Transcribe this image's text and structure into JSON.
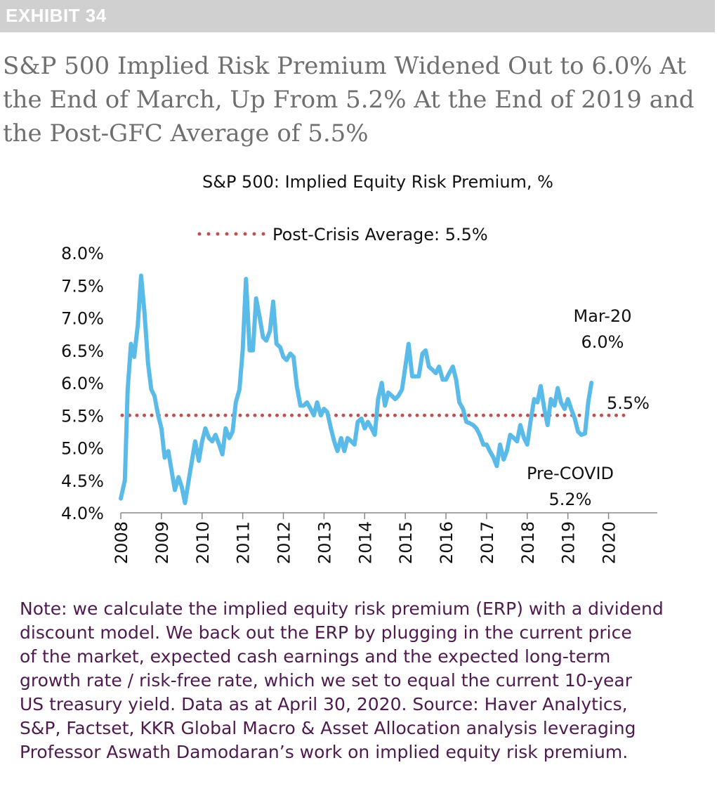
{
  "exhibit_label": "EXHIBIT 34",
  "headline": "S&P 500 Implied Risk Premium Widened Out to 6.0% At the End of March, Up From 5.2% At the End of 2019 and the Post-GFC Average of 5.5%",
  "note_lines": [
    "Note: we calculate the implied equity risk premium (ERP) with a dividend",
    "discount model. We back out the ERP by plugging in the current price",
    "of the market, expected cash earnings and the expected long-term",
    "growth rate / risk-free rate, which we set to equal the current 10-year",
    "US treasury yield. Data as at April 30, 2020. Source: Haver Analytics,",
    "S&P, Factset, KKR Global Macro & Asset Allocation analysis leveraging",
    "Professor Aswath Damodaran’s work on implied equity risk premium."
  ],
  "colors": {
    "series": "#5bbbe8",
    "average": "#c0504d",
    "note": "#4f1b4f",
    "headline": "#6f6f6f",
    "exhibit_bar": "#d0d0d0"
  },
  "chart_data": {
    "type": "line",
    "title": "S&P 500: Implied Equity Risk Premium, %",
    "legend": {
      "label": "Post-Crisis Average: 5.5%",
      "placement": "top"
    },
    "ylim": [
      4.0,
      8.0
    ],
    "yticks": [
      "4.0%",
      "4.5%",
      "5.0%",
      "5.5%",
      "6.0%",
      "6.5%",
      "7.0%",
      "7.5%",
      "8.0%"
    ],
    "xlim": [
      2008,
      2021.2
    ],
    "xticks": [
      "2008",
      "2009",
      "2010",
      "2011",
      "2012",
      "2013",
      "2014",
      "2015",
      "2016",
      "2017",
      "2018",
      "2019",
      "2020"
    ],
    "grid": false,
    "series": [
      {
        "values": [
          [
            2008.0,
            4.22
          ],
          [
            2008.1,
            4.5
          ],
          [
            2008.17,
            5.9
          ],
          [
            2008.25,
            6.6
          ],
          [
            2008.33,
            6.4
          ],
          [
            2008.42,
            6.9
          ],
          [
            2008.5,
            7.65
          ],
          [
            2008.58,
            7.1
          ],
          [
            2008.67,
            6.3
          ],
          [
            2008.75,
            5.9
          ],
          [
            2008.83,
            5.8
          ],
          [
            2008.92,
            5.5
          ],
          [
            2009.0,
            5.3
          ],
          [
            2009.08,
            4.85
          ],
          [
            2009.17,
            4.95
          ],
          [
            2009.25,
            4.65
          ],
          [
            2009.33,
            4.35
          ],
          [
            2009.42,
            4.55
          ],
          [
            2009.5,
            4.4
          ],
          [
            2009.58,
            4.15
          ],
          [
            2009.67,
            4.5
          ],
          [
            2009.75,
            4.8
          ],
          [
            2009.83,
            5.1
          ],
          [
            2009.92,
            4.8
          ],
          [
            2010.0,
            5.1
          ],
          [
            2010.08,
            5.3
          ],
          [
            2010.17,
            5.15
          ],
          [
            2010.25,
            5.1
          ],
          [
            2010.33,
            5.2
          ],
          [
            2010.42,
            5.05
          ],
          [
            2010.5,
            4.9
          ],
          [
            2010.58,
            5.3
          ],
          [
            2010.67,
            5.15
          ],
          [
            2010.75,
            5.25
          ],
          [
            2010.83,
            5.7
          ],
          [
            2010.92,
            5.9
          ],
          [
            2011.0,
            6.5
          ],
          [
            2011.08,
            7.6
          ],
          [
            2011.17,
            6.5
          ],
          [
            2011.25,
            6.5
          ],
          [
            2011.33,
            7.3
          ],
          [
            2011.42,
            7.0
          ],
          [
            2011.5,
            6.7
          ],
          [
            2011.58,
            6.65
          ],
          [
            2011.67,
            6.8
          ],
          [
            2011.75,
            7.25
          ],
          [
            2011.83,
            6.6
          ],
          [
            2011.92,
            6.55
          ],
          [
            2012.0,
            6.4
          ],
          [
            2012.08,
            6.35
          ],
          [
            2012.17,
            6.45
          ],
          [
            2012.25,
            6.4
          ],
          [
            2012.33,
            5.95
          ],
          [
            2012.42,
            5.65
          ],
          [
            2012.5,
            5.65
          ],
          [
            2012.58,
            5.7
          ],
          [
            2012.67,
            5.6
          ],
          [
            2012.75,
            5.5
          ],
          [
            2012.83,
            5.7
          ],
          [
            2012.92,
            5.5
          ],
          [
            2013.0,
            5.6
          ],
          [
            2013.08,
            5.55
          ],
          [
            2013.17,
            5.3
          ],
          [
            2013.25,
            5.1
          ],
          [
            2013.33,
            4.95
          ],
          [
            2013.42,
            5.15
          ],
          [
            2013.5,
            4.95
          ],
          [
            2013.58,
            5.15
          ],
          [
            2013.67,
            5.1
          ],
          [
            2013.75,
            5.05
          ],
          [
            2013.83,
            5.4
          ],
          [
            2013.92,
            5.45
          ],
          [
            2014.0,
            5.3
          ],
          [
            2014.08,
            5.4
          ],
          [
            2014.17,
            5.3
          ],
          [
            2014.25,
            5.2
          ],
          [
            2014.33,
            5.75
          ],
          [
            2014.42,
            6.0
          ],
          [
            2014.5,
            5.65
          ],
          [
            2014.58,
            5.85
          ],
          [
            2014.67,
            5.8
          ],
          [
            2014.75,
            5.75
          ],
          [
            2014.83,
            5.8
          ],
          [
            2014.92,
            5.9
          ],
          [
            2015.0,
            6.25
          ],
          [
            2015.08,
            6.6
          ],
          [
            2015.17,
            6.1
          ],
          [
            2015.25,
            6.1
          ],
          [
            2015.33,
            6.1
          ],
          [
            2015.42,
            6.45
          ],
          [
            2015.5,
            6.5
          ],
          [
            2015.58,
            6.25
          ],
          [
            2015.67,
            6.2
          ],
          [
            2015.75,
            6.15
          ],
          [
            2015.83,
            6.25
          ],
          [
            2015.92,
            6.05
          ],
          [
            2016.0,
            6.05
          ],
          [
            2016.08,
            6.15
          ],
          [
            2016.17,
            6.25
          ],
          [
            2016.25,
            6.05
          ],
          [
            2016.33,
            5.7
          ],
          [
            2016.42,
            5.6
          ],
          [
            2016.5,
            5.4
          ],
          [
            2016.58,
            5.38
          ],
          [
            2016.67,
            5.35
          ],
          [
            2016.75,
            5.3
          ],
          [
            2016.83,
            5.2
          ],
          [
            2016.92,
            5.05
          ],
          [
            2017.0,
            5.05
          ],
          [
            2017.08,
            4.95
          ],
          [
            2017.17,
            4.85
          ],
          [
            2017.25,
            4.72
          ],
          [
            2017.33,
            5.05
          ],
          [
            2017.42,
            4.82
          ],
          [
            2017.5,
            4.95
          ],
          [
            2017.58,
            5.2
          ],
          [
            2017.67,
            5.15
          ],
          [
            2017.75,
            5.1
          ],
          [
            2017.83,
            5.35
          ],
          [
            2017.92,
            5.15
          ],
          [
            2018.0,
            5.05
          ],
          [
            2018.08,
            5.4
          ],
          [
            2018.17,
            5.75
          ],
          [
            2018.25,
            5.7
          ],
          [
            2018.33,
            5.95
          ],
          [
            2018.42,
            5.6
          ],
          [
            2018.5,
            5.35
          ],
          [
            2018.58,
            5.75
          ],
          [
            2018.67,
            5.65
          ],
          [
            2018.75,
            5.92
          ],
          [
            2018.83,
            5.7
          ],
          [
            2018.92,
            5.6
          ],
          [
            2019.0,
            5.75
          ],
          [
            2019.08,
            5.6
          ],
          [
            2019.17,
            5.45
          ],
          [
            2019.25,
            5.25
          ],
          [
            2019.33,
            5.2
          ],
          [
            2019.42,
            5.22
          ],
          [
            2019.5,
            5.7
          ],
          [
            2019.58,
            6.0
          ]
        ]
      }
    ],
    "average_value": 5.5,
    "annotations": {
      "mar20": [
        "Mar-20",
        "6.0%"
      ],
      "pre_covid": [
        "Pre-COVID",
        "5.2%"
      ],
      "average_label": "5.5%"
    }
  }
}
